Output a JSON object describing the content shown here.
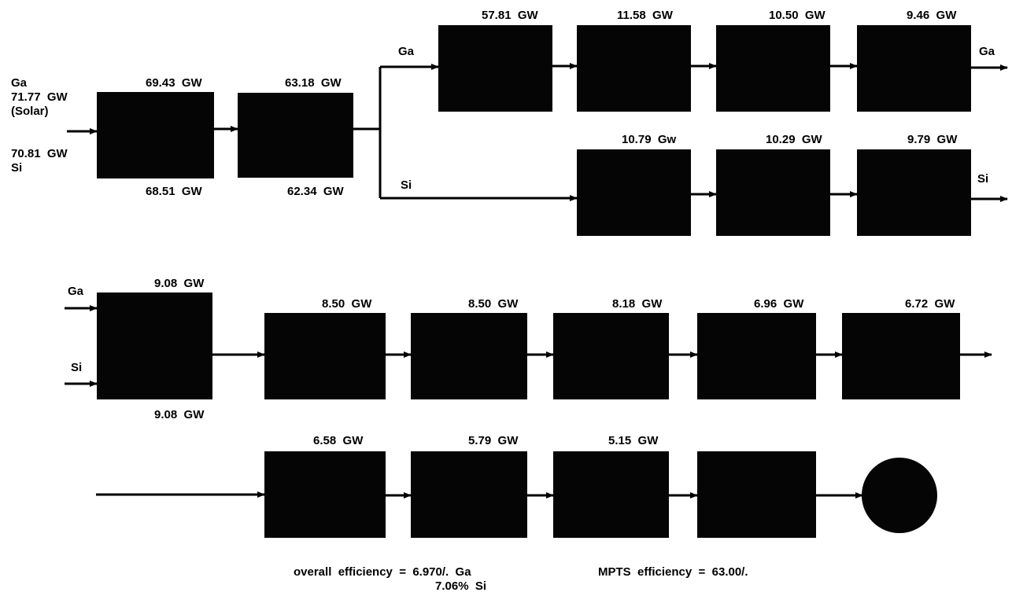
{
  "input": {
    "ga_label": "Ga",
    "ga_power": "71.77  GW",
    "source": "(Solar)",
    "si_power": "70.81  GW",
    "si_label": "Si"
  },
  "row1": {
    "box1_top": "69.43  GW",
    "box1_bottom": "68.51  GW",
    "box2_top": "63.18  GW",
    "box2_bottom": "62.34  GW",
    "branch_ga": "Ga",
    "branch_si": "Si",
    "ga_boxes": [
      "57.81  GW",
      "11.58  GW",
      "10.50  GW",
      "9.46  GW"
    ],
    "ga_out": "Ga",
    "si_boxes": [
      "10.79  Gw",
      "10.29  GW",
      "9.79  GW"
    ],
    "si_out": "Si"
  },
  "row2": {
    "ga_in": "Ga",
    "si_in": "Si",
    "combiner_top": "9.08  GW",
    "combiner_bottom": "9.08  GW",
    "boxes": [
      "8.50  GW",
      "8.50  GW",
      "8.18  GW",
      "6.96  GW",
      "6.72  GW"
    ]
  },
  "row3": {
    "boxes": [
      "6.58  GW",
      "5.79  GW",
      "5.15  GW"
    ]
  },
  "footer": {
    "overall_line1": "overall  efficiency  =  6.970/.  Ga",
    "overall_line2": "7.06%  Si",
    "mpts": "MPTS  efficiency  =  63.00/."
  }
}
